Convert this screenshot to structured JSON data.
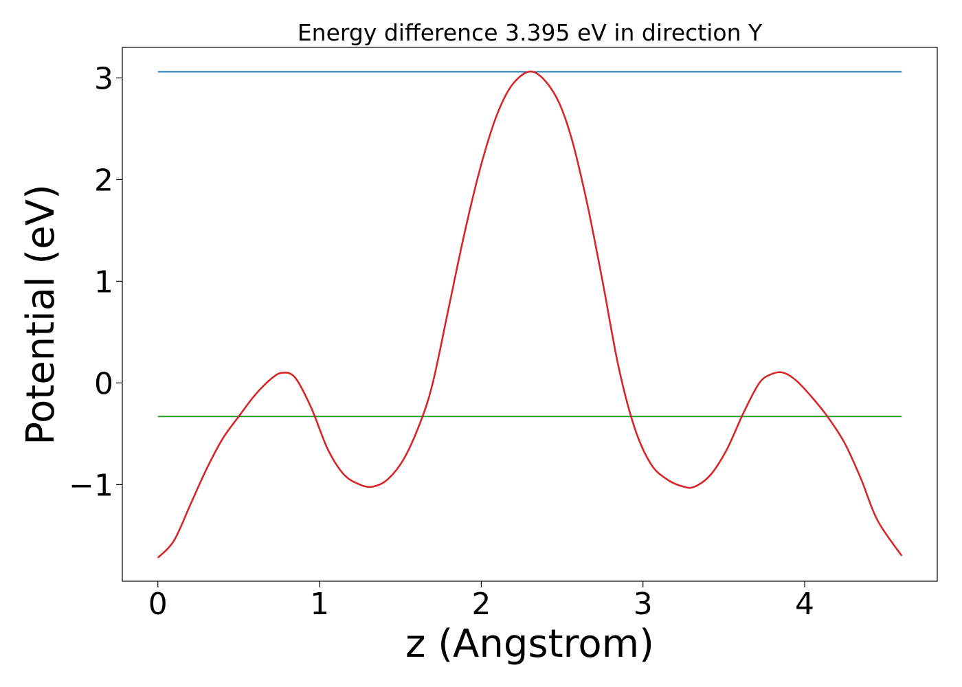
{
  "chart_data": {
    "type": "line",
    "title": "Energy difference 3.395 eV in direction Y",
    "xlabel": "z (Angstrom)",
    "ylabel": "Potential (eV)",
    "xlim": [
      -0.22,
      4.82
    ],
    "ylim": [
      -1.95,
      3.3
    ],
    "xticks": [
      {
        "value": 0,
        "label": "0"
      },
      {
        "value": 1,
        "label": "1"
      },
      {
        "value": 2,
        "label": "2"
      },
      {
        "value": 3,
        "label": "3"
      },
      {
        "value": 4,
        "label": "4"
      }
    ],
    "yticks": [
      {
        "value": -1,
        "label": "−1"
      },
      {
        "value": 0,
        "label": "0"
      },
      {
        "value": 1,
        "label": "1"
      },
      {
        "value": 2,
        "label": "2"
      },
      {
        "value": 3,
        "label": "3"
      }
    ],
    "grid": false,
    "series": [
      {
        "color": "#d62728",
        "x": [
          0.0,
          0.1,
          0.2,
          0.3,
          0.4,
          0.5,
          0.6,
          0.7,
          0.77,
          0.85,
          0.95,
          1.05,
          1.15,
          1.25,
          1.33,
          1.42,
          1.52,
          1.62,
          1.7,
          1.8,
          1.9,
          2.0,
          2.1,
          2.2,
          2.32,
          2.45,
          2.55,
          2.65,
          2.75,
          2.85,
          2.95,
          3.05,
          3.15,
          3.25,
          3.32,
          3.42,
          3.52,
          3.62,
          3.72,
          3.8,
          3.87,
          3.95,
          4.05,
          4.15,
          4.25,
          4.35,
          4.45,
          4.6
        ],
        "y": [
          -1.72,
          -1.55,
          -1.2,
          -0.85,
          -0.55,
          -0.33,
          -0.12,
          0.04,
          0.1,
          0.05,
          -0.25,
          -0.65,
          -0.9,
          -1.0,
          -1.02,
          -0.95,
          -0.75,
          -0.4,
          0.0,
          0.75,
          1.5,
          2.15,
          2.65,
          2.95,
          3.06,
          2.85,
          2.45,
          1.8,
          1.0,
          0.15,
          -0.45,
          -0.8,
          -0.95,
          -1.02,
          -1.02,
          -0.9,
          -0.65,
          -0.3,
          0.0,
          0.09,
          0.1,
          0.02,
          -0.15,
          -0.35,
          -0.6,
          -0.95,
          -1.35,
          -1.7
        ]
      }
    ],
    "hlines": [
      {
        "y": 3.06,
        "xmin": 0.0,
        "xmax": 4.6,
        "color": "#1f77b4"
      },
      {
        "y": -0.33,
        "xmin": 0.0,
        "xmax": 4.6,
        "color": "#2ca02c"
      }
    ]
  }
}
